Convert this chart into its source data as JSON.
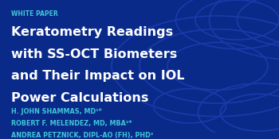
{
  "background_color": "#0a2a8a",
  "circle_color": "#1a3aaa",
  "white_paper_label": "WHITE PAPER",
  "white_paper_color": "#40c8d8",
  "title_lines": [
    "Keratometry Readings",
    "with SS-OCT Biometers",
    "and Their Impact on IOL",
    "Power Calculations"
  ],
  "title_color": "#ffffff",
  "authors": [
    "H. JOHN SHAMMAS, MD¹*",
    "ROBERT F. MELENDEZ, MD, MBA²*",
    "ANDREA PETZNICK, DIPL-AO (FH), PHD³"
  ],
  "author_color": "#40c8d8",
  "title_fontsize": 11.5,
  "author_fontsize": 5.8,
  "label_fontsize": 5.5,
  "circles": [
    [
      0.78,
      0.5,
      0.38
    ],
    [
      0.78,
      0.5,
      0.28
    ],
    [
      0.78,
      0.5,
      0.18
    ],
    [
      0.93,
      0.15,
      0.22
    ],
    [
      0.93,
      0.15,
      0.14
    ],
    [
      1.05,
      0.85,
      0.3
    ],
    [
      1.05,
      0.85,
      0.2
    ],
    [
      0.85,
      0.85,
      0.15
    ],
    [
      0.85,
      0.85,
      0.22
    ],
    [
      0.68,
      0.2,
      0.13
    ]
  ]
}
